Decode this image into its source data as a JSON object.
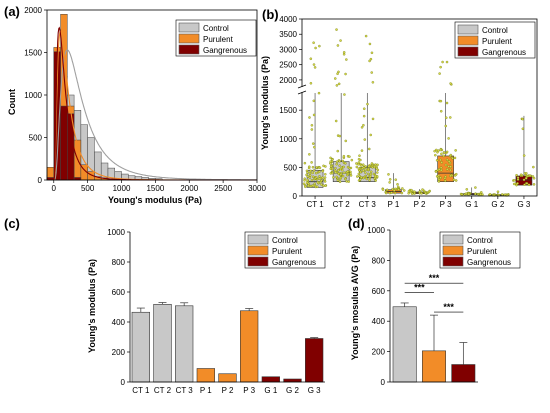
{
  "colors": {
    "control": "#c8c8c8",
    "purulent": "#f28c28",
    "gangrenous": "#800000",
    "fit_line": "#a0a0a0",
    "dots": "#d8d84a"
  },
  "chart_data": [
    {
      "panel": "(a)",
      "type": "bar",
      "subtype": "overlaid histogram with fitted curves",
      "xlabel": "Young's modulus (Pa)",
      "ylabel": "Count",
      "xlim": [
        -100,
        3000
      ],
      "ylim": [
        0,
        2000
      ],
      "xticks": [
        0,
        500,
        1000,
        1500,
        2000,
        2500,
        3000
      ],
      "yticks": [
        0,
        500,
        1000,
        1500,
        2000
      ],
      "grid": false,
      "legend": "top-right",
      "bin_width": 100,
      "series": [
        {
          "name": "Control",
          "color": "#c8c8c8",
          "x": [
            -50,
            50,
            150,
            250,
            350,
            450,
            550,
            650,
            750,
            850,
            950,
            1050,
            1150,
            1250,
            1350,
            1450,
            1550
          ],
          "values": [
            60,
            520,
            1220,
            1000,
            820,
            650,
            500,
            330,
            200,
            140,
            100,
            70,
            50,
            40,
            30,
            20,
            15
          ]
        },
        {
          "name": "Purulent",
          "color": "#f28c28",
          "x": [
            -50,
            50,
            150,
            250,
            350,
            450,
            550,
            650,
            750,
            850,
            950
          ],
          "values": [
            150,
            1560,
            1950,
            870,
            470,
            180,
            100,
            40,
            25,
            10,
            5
          ]
        },
        {
          "name": "Gangrenous",
          "color": "#800000",
          "x": [
            -50,
            50,
            150,
            250,
            350
          ],
          "values": [
            30,
            1510,
            870,
            780,
            30
          ]
        }
      ],
      "fitted_curves": [
        {
          "series": "Control",
          "color": "#a0a0a0",
          "peak_x": 200,
          "peak_y": 1530
        },
        {
          "series": "Purulent",
          "color": "#f28c28",
          "peak_x": 100,
          "peak_y": 1750
        },
        {
          "series": "Gangrenous",
          "color": "#800000",
          "peak_x": 80,
          "peak_y": 1790
        }
      ]
    },
    {
      "panel": "(b)",
      "type": "box",
      "subtype": "box plot with scatter, broken y axis",
      "categories": [
        "CT 1",
        "CT 2",
        "CT 3",
        "P 1",
        "P 2",
        "P 3",
        "G 1",
        "G 2",
        "G 3"
      ],
      "groups": [
        "Control",
        "Control",
        "Control",
        "Purulent",
        "Purulent",
        "Purulent",
        "Gangrenous",
        "Gangrenous",
        "Gangrenous"
      ],
      "ylabel": "Young's modulus (Pa)",
      "ylim_lower": [
        0,
        1800
      ],
      "ylim_upper": [
        1800,
        4000
      ],
      "yticks_lower": [
        0,
        500,
        1000,
        1500
      ],
      "yticks_upper": [
        2000,
        2500,
        3000,
        3500,
        4000
      ],
      "legend": "top-right",
      "boxes": [
        {
          "q1": 150,
          "median": 250,
          "q3": 450,
          "mean": 280,
          "max": 3500
        },
        {
          "q1": 250,
          "median": 400,
          "q3": 600,
          "mean": 420,
          "max": 3700
        },
        {
          "q1": 250,
          "median": 320,
          "q3": 500,
          "mean": 380,
          "max": 3700
        },
        {
          "q1": 50,
          "median": 80,
          "q3": 110,
          "mean": 85,
          "max": 400
        },
        {
          "q1": 40,
          "median": 55,
          "q3": 70,
          "mean": 55,
          "max": 120
        },
        {
          "q1": 250,
          "median": 400,
          "q3": 700,
          "mean": 470,
          "max": 2700
        },
        {
          "q1": 20,
          "median": 30,
          "q3": 45,
          "mean": 32,
          "max": 150
        },
        {
          "q1": 10,
          "median": 18,
          "q3": 25,
          "mean": 18,
          "max": 80
        },
        {
          "q1": 190,
          "median": 280,
          "q3": 350,
          "mean": 290,
          "max": 1400
        }
      ]
    },
    {
      "panel": "(c)",
      "type": "bar",
      "categories": [
        "CT 1",
        "CT 2",
        "CT 3",
        "P 1",
        "P 2",
        "P 3",
        "G 1",
        "G 2",
        "G 3"
      ],
      "groups": [
        "Control",
        "Control",
        "Control",
        "Purulent",
        "Purulent",
        "Purulent",
        "Gangrenous",
        "Gangrenous",
        "Gangrenous"
      ],
      "values": [
        465,
        518,
        508,
        90,
        55,
        475,
        35,
        20,
        290
      ],
      "errors": [
        28,
        12,
        20,
        0,
        0,
        15,
        0,
        0,
        6
      ],
      "ylabel": "Young's modulus (Pa)",
      "ylim": [
        0,
        1000
      ],
      "yticks": [
        0,
        200,
        400,
        600,
        800,
        1000
      ],
      "legend": "top-right"
    },
    {
      "panel": "(d)",
      "type": "bar",
      "categories": [
        "Control",
        "Purulent",
        "Gangrenous"
      ],
      "values": [
        495,
        205,
        115
      ],
      "errors": [
        25,
        235,
        145
      ],
      "ylabel": "Young's mosulus AVG (Pa)",
      "ylim": [
        0,
        1000
      ],
      "yticks": [
        0,
        200,
        400,
        600,
        800,
        1000
      ],
      "legend": "top-right",
      "significance": [
        {
          "from": 0,
          "to": 2,
          "label": "***"
        },
        {
          "from": 0,
          "to": 1,
          "label": "***"
        },
        {
          "from": 1,
          "to": 2,
          "label": "***"
        }
      ]
    }
  ],
  "legend": {
    "control": "Control",
    "purulent": "Purulent",
    "gangrenous": "Gangrenous"
  }
}
